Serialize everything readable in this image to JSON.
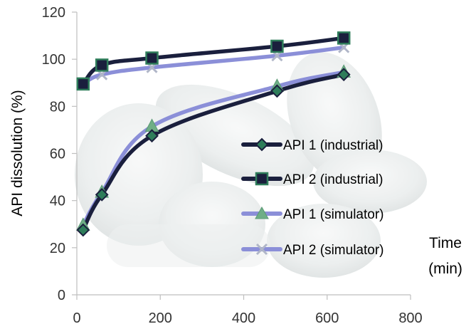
{
  "chart_data": {
    "type": "line",
    "title": "",
    "xlabel": "Time (min)",
    "xlabel_lines": [
      "Time",
      "(min)"
    ],
    "ylabel": "API dissolution (%)",
    "xlim": [
      0,
      800
    ],
    "ylim": [
      0,
      120
    ],
    "xticks": [
      "0",
      "200",
      "400",
      "600",
      "800"
    ],
    "yticks": [
      "0",
      "20",
      "40",
      "60",
      "80",
      "100",
      "120"
    ],
    "grid": false,
    "legend_position": "right",
    "background": "faded photograph of white tablets",
    "series": [
      {
        "name": "API 1 (industrial)",
        "color": "#1a1f3d",
        "marker": "diamond",
        "marker_color": "#2e7d5a",
        "x": [
          15,
          60,
          180,
          480,
          640
        ],
        "y": [
          27.5,
          42.5,
          67.5,
          86.5,
          93.5
        ]
      },
      {
        "name": "API 2 (industrial)",
        "color": "#1a1f3d",
        "marker": "square",
        "marker_color": "#2e7d5a",
        "x": [
          15,
          60,
          180,
          480,
          640
        ],
        "y": [
          89.5,
          97.5,
          100.5,
          105.5,
          109
        ]
      },
      {
        "name": "API 1 (simulator)",
        "color": "#8b8fd8",
        "marker": "triangle",
        "marker_color": "#6fae86",
        "x": [
          15,
          60,
          180,
          480,
          640
        ],
        "y": [
          29.5,
          43.5,
          71.5,
          88.5,
          94.5
        ]
      },
      {
        "name": "API 2 (simulator)",
        "color": "#8b8fd8",
        "marker": "x",
        "marker_color": "#b0b6c8",
        "x": [
          15,
          60,
          180,
          480,
          640
        ],
        "y": [
          89.5,
          93.5,
          96.5,
          101.5,
          105
        ]
      }
    ]
  }
}
